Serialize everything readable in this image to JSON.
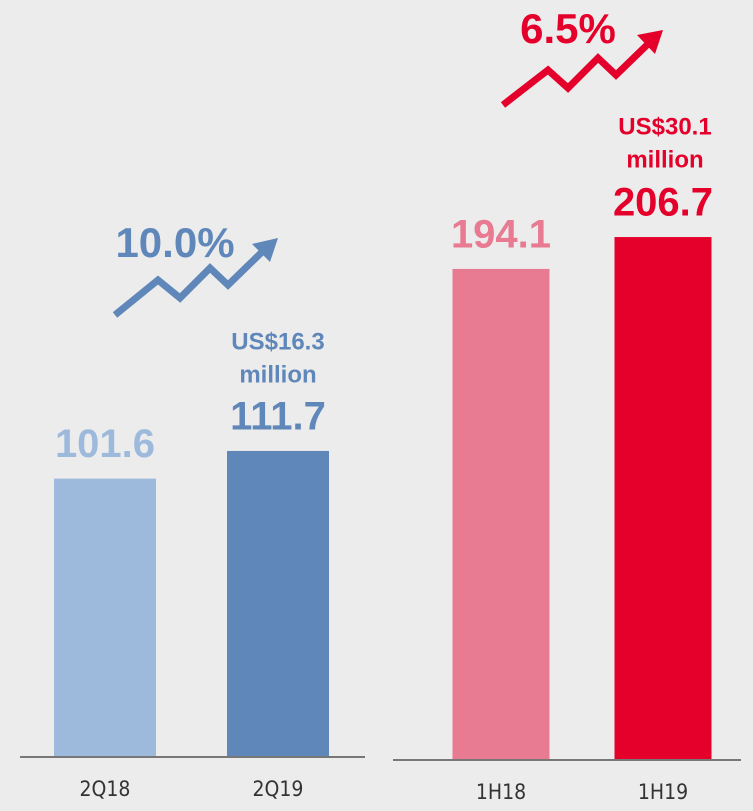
{
  "chart_data": [
    {
      "type": "bar",
      "categories": [
        "2Q18",
        "2Q19"
      ],
      "values": [
        101.6,
        111.7
      ],
      "colors": [
        "#9dbadc",
        "#5f87ba"
      ],
      "annotation": {
        "growth": "10.0%",
        "note": [
          "US$16.3",
          "million"
        ],
        "color": "#5f87ba"
      }
    },
    {
      "type": "bar",
      "categories": [
        "1H18",
        "1H19"
      ],
      "values": [
        194.1,
        206.7
      ],
      "colors": [
        "#e87a91",
        "#e4002b"
      ],
      "annotation": {
        "growth": "6.5%",
        "note": [
          "US$30.1",
          "million"
        ],
        "color": "#e4002b"
      }
    }
  ]
}
